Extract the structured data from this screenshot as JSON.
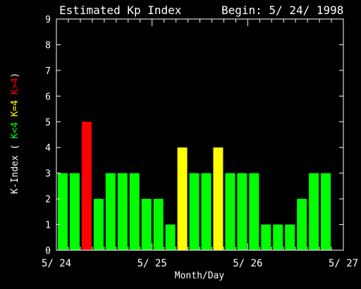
{
  "header": {
    "title": "Estimated Kp Index",
    "begin": "Begin: 5/ 24/ 1998"
  },
  "chart_data": {
    "type": "bar",
    "title": "Estimated Kp Index",
    "subtitle": "Begin: 5/ 24/ 1998",
    "xlabel": "Month/Day",
    "ylabel_parts": [
      {
        "text": "K-Index (",
        "color": "#ffffff"
      },
      {
        "text": "K<4",
        "color": "#00ff00"
      },
      {
        "text": "K=4",
        "color": "#ffff00"
      },
      {
        "text": "K>4",
        "color": "#ff0000"
      },
      {
        "text": ")",
        "color": "#ffffff"
      }
    ],
    "ylim": [
      0,
      9
    ],
    "yticks": [
      0,
      1,
      2,
      3,
      4,
      5,
      6,
      7,
      8,
      9
    ],
    "xticks": [
      {
        "label": "5/ 24",
        "index": 0
      },
      {
        "label": "5/ 25",
        "index": 8
      },
      {
        "label": "5/ 26",
        "index": 16
      },
      {
        "label": "5/ 27",
        "index": 24
      }
    ],
    "interval_hours": 3,
    "values": [
      3,
      3,
      5,
      2,
      3,
      3,
      3,
      2,
      2,
      1,
      4,
      3,
      3,
      4,
      3,
      3,
      3,
      1,
      1,
      1,
      2,
      3,
      3
    ],
    "colors": {
      "low": "#00ff00",
      "equal": "#ffff00",
      "high": "#ff0000",
      "axis": "#ffffff",
      "background": "#000000"
    },
    "grid": false
  }
}
